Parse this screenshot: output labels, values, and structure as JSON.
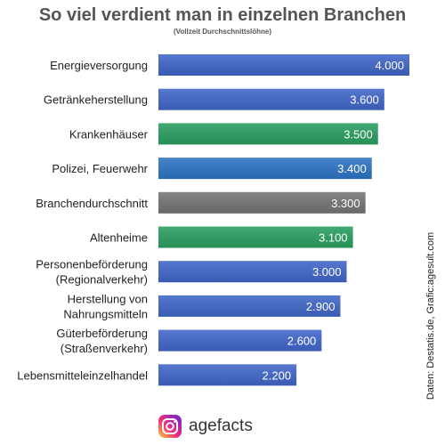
{
  "chart_data": {
    "type": "bar",
    "orientation": "horizontal",
    "title": "So viel verdient man in einzelnen Branchen",
    "subtitle": "(Vollzeit Durchschnittslöhne)",
    "categories": [
      [
        "Energieversorgung"
      ],
      [
        "Getränkeherstellung"
      ],
      [
        "Krankenhäuser"
      ],
      [
        "Polizei, Feuerwehr"
      ],
      [
        "Branchendurchschnitt"
      ],
      [
        "Altenheime"
      ],
      [
        "Personenbeförderung",
        "(Regionalverkehr)"
      ],
      [
        "Herstellung von",
        "Nahrungsmitteln"
      ],
      [
        "Güterbeförderung",
        "(Straßenverkehr)"
      ],
      [
        "Lebensmitteleinzelhandel"
      ]
    ],
    "values": [
      4000,
      3600,
      3500,
      3400,
      3300,
      3100,
      3000,
      2900,
      2600,
      2200
    ],
    "value_labels": [
      "4.000",
      "3.600",
      "3.500",
      "3.400",
      "3.300",
      "3.100",
      "3.000",
      "2.900",
      "2.600",
      "2.200"
    ],
    "bar_colors": [
      "#4066c8",
      "#4066c8",
      "#2a9e61",
      "#2d74c4",
      "#747474",
      "#2a9e61",
      "#4066c8",
      "#4066c8",
      "#4066c8",
      "#4066c8"
    ],
    "xlim": [
      0,
      4000
    ],
    "grid": false,
    "legend": "none"
  },
  "source": "Daten: Destatis.de, Grafic:agesult.com",
  "footer": {
    "icon": "instagram-icon",
    "text": "agefacts"
  }
}
